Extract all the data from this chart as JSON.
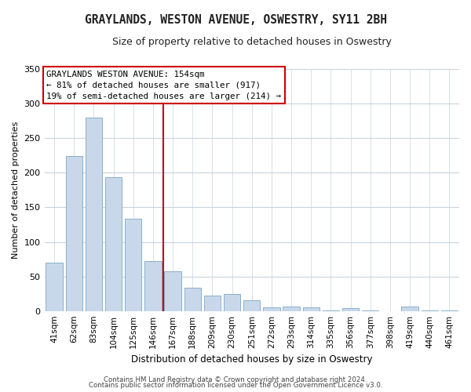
{
  "title": "GRAYLANDS, WESTON AVENUE, OSWESTRY, SY11 2BH",
  "subtitle": "Size of property relative to detached houses in Oswestry",
  "xlabel": "Distribution of detached houses by size in Oswestry",
  "ylabel": "Number of detached properties",
  "bar_labels": [
    "41sqm",
    "62sqm",
    "83sqm",
    "104sqm",
    "125sqm",
    "146sqm",
    "167sqm",
    "188sqm",
    "209sqm",
    "230sqm",
    "251sqm",
    "272sqm",
    "293sqm",
    "314sqm",
    "335sqm",
    "356sqm",
    "377sqm",
    "398sqm",
    "419sqm",
    "440sqm",
    "461sqm"
  ],
  "bar_values": [
    70,
    224,
    280,
    193,
    134,
    72,
    58,
    34,
    22,
    25,
    15,
    5,
    7,
    5,
    1,
    4,
    1,
    0,
    6,
    1,
    1
  ],
  "bar_color": "#c8d8ea",
  "bar_edgecolor": "#8ab0c8",
  "vline_x": 5.5,
  "vline_color": "#cc0000",
  "ylim": [
    0,
    350
  ],
  "yticks": [
    0,
    50,
    100,
    150,
    200,
    250,
    300,
    350
  ],
  "annotation_title": "GRAYLANDS WESTON AVENUE: 154sqm",
  "annotation_line1": "← 81% of detached houses are smaller (917)",
  "annotation_line2": "19% of semi-detached houses are larger (214) →",
  "annotation_box_facecolor": "#ffffff",
  "annotation_box_edgecolor": "#cc0000",
  "footer_line1": "Contains HM Land Registry data © Crown copyright and database right 2024.",
  "footer_line2": "Contains public sector information licensed under the Open Government Licence v3.0.",
  "bg_color": "#ffffff",
  "plot_bg_color": "#ffffff",
  "grid_color": "#c8d4de"
}
